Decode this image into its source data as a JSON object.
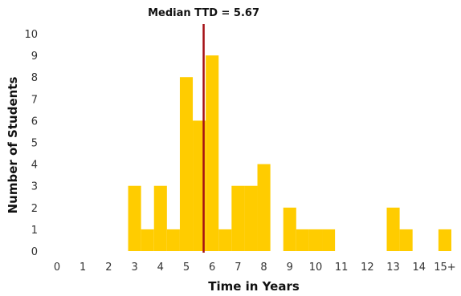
{
  "chart_data": {
    "type": "bar",
    "title": "",
    "xlabel": "Time in Years",
    "ylabel": "Number of Students",
    "x_tick_labels": [
      "0",
      "1",
      "2",
      "3",
      "4",
      "5",
      "6",
      "7",
      "8",
      "9",
      "10",
      "11",
      "12",
      "13",
      "14",
      "15+"
    ],
    "y_tick_labels": [
      "0",
      "1",
      "2",
      "3",
      "4",
      "5",
      "6",
      "7",
      "8",
      "9",
      "10"
    ],
    "xlim": [
      0,
      15.25
    ],
    "ylim": [
      0,
      10
    ],
    "bin_width": 0.5,
    "bins": [
      {
        "x": 2.75,
        "value": 3
      },
      {
        "x": 3.25,
        "value": 1
      },
      {
        "x": 3.75,
        "value": 3
      },
      {
        "x": 4.25,
        "value": 1
      },
      {
        "x": 4.75,
        "value": 8
      },
      {
        "x": 5.25,
        "value": 6
      },
      {
        "x": 5.75,
        "value": 9
      },
      {
        "x": 6.25,
        "value": 1
      },
      {
        "x": 6.75,
        "value": 3
      },
      {
        "x": 7.25,
        "value": 3
      },
      {
        "x": 7.75,
        "value": 4
      },
      {
        "x": 8.75,
        "value": 2
      },
      {
        "x": 9.25,
        "value": 1
      },
      {
        "x": 9.75,
        "value": 1
      },
      {
        "x": 10.25,
        "value": 1
      },
      {
        "x": 12.75,
        "value": 2
      },
      {
        "x": 13.25,
        "value": 1
      },
      {
        "x": 14.75,
        "value": 1
      }
    ],
    "median": 5.67,
    "median_label": "Median TTD = 5.67",
    "bar_color": "#FFCC00",
    "median_color": "#A50F15",
    "grid": false,
    "legend": "none"
  }
}
